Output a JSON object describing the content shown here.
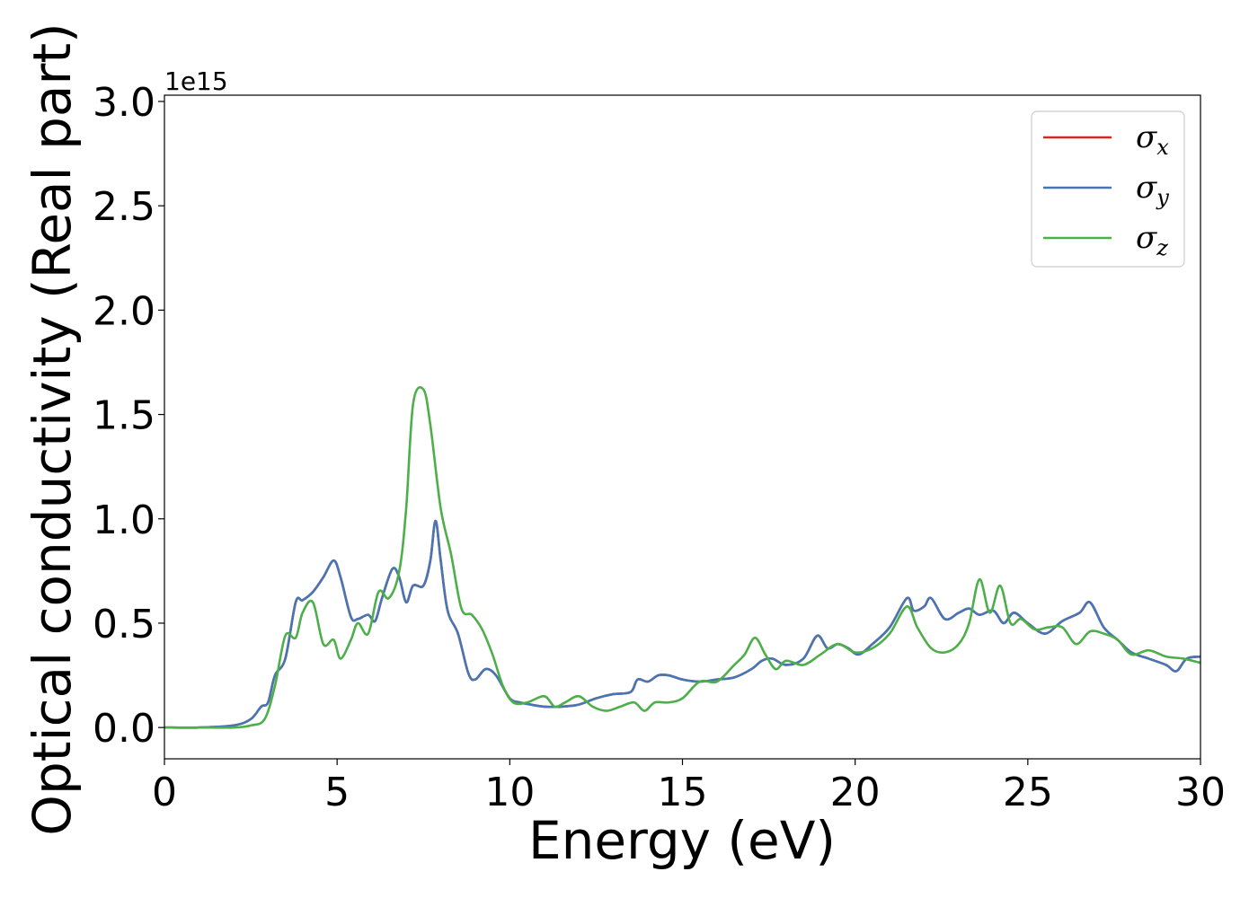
{
  "chart_data": {
    "type": "line",
    "xlabel": "Energy (eV)",
    "ylabel": "Optical conductivity (Real part)",
    "y_offset_text": "1e15",
    "xlim": [
      0,
      30
    ],
    "ylim": [
      -0.15,
      3.03
    ],
    "y_scale_factor": 1000000000000000.0,
    "x_ticks": [
      0,
      5,
      10,
      15,
      20,
      25,
      30
    ],
    "x_tick_labels": [
      "0",
      "5",
      "10",
      "15",
      "20",
      "25",
      "30"
    ],
    "y_ticks": [
      0.0,
      0.5,
      1.0,
      1.5,
      2.0,
      2.5,
      3.0
    ],
    "y_tick_labels": [
      "0.0",
      "0.5",
      "1.0",
      "1.5",
      "2.0",
      "2.5",
      "3.0"
    ],
    "grid": false,
    "legend_position": "top-right",
    "series": [
      {
        "name": "σx",
        "legend_base": "σ",
        "legend_sub": "x",
        "color": "#d62728",
        "x": [
          0,
          1,
          2,
          2.5,
          2.8,
          3.0,
          3.2,
          3.5,
          3.8,
          4.0,
          4.3,
          4.6,
          4.9,
          5.1,
          5.4,
          5.6,
          5.9,
          6.1,
          6.3,
          6.6,
          6.8,
          7.0,
          7.2,
          7.5,
          7.7,
          7.85,
          8.0,
          8.2,
          8.5,
          8.8,
          9.0,
          9.3,
          9.6,
          10.0,
          10.3,
          10.6,
          11.0,
          11.5,
          12.0,
          12.5,
          13.0,
          13.5,
          13.7,
          14.0,
          14.3,
          14.6,
          15.0,
          15.5,
          16.0,
          16.5,
          17.0,
          17.3,
          17.6,
          18.0,
          18.5,
          18.9,
          19.2,
          19.5,
          19.8,
          20.1,
          20.5,
          21.0,
          21.5,
          21.7,
          22.0,
          22.2,
          22.6,
          23.0,
          23.3,
          23.6,
          24.0,
          24.3,
          24.6,
          25.0,
          25.5,
          26.0,
          26.5,
          26.8,
          27.2,
          27.6,
          28.0,
          28.5,
          29.0,
          29.3,
          29.6,
          30.0
        ],
        "values": [
          0.0,
          0.0,
          0.01,
          0.04,
          0.1,
          0.12,
          0.25,
          0.33,
          0.6,
          0.61,
          0.65,
          0.72,
          0.8,
          0.72,
          0.53,
          0.52,
          0.54,
          0.51,
          0.62,
          0.76,
          0.72,
          0.6,
          0.68,
          0.68,
          0.8,
          0.99,
          0.8,
          0.56,
          0.45,
          0.26,
          0.23,
          0.28,
          0.25,
          0.14,
          0.12,
          0.11,
          0.1,
          0.1,
          0.11,
          0.14,
          0.16,
          0.17,
          0.23,
          0.22,
          0.25,
          0.25,
          0.23,
          0.22,
          0.23,
          0.24,
          0.28,
          0.32,
          0.33,
          0.3,
          0.33,
          0.44,
          0.38,
          0.4,
          0.38,
          0.35,
          0.4,
          0.48,
          0.62,
          0.56,
          0.58,
          0.62,
          0.52,
          0.55,
          0.57,
          0.54,
          0.56,
          0.5,
          0.55,
          0.5,
          0.45,
          0.51,
          0.55,
          0.6,
          0.48,
          0.42,
          0.36,
          0.33,
          0.3,
          0.27,
          0.33,
          0.34
        ]
      },
      {
        "name": "σy",
        "legend_base": "σ",
        "legend_sub": "y",
        "color": "#4676b4",
        "x": [
          0,
          1,
          2,
          2.5,
          2.8,
          3.0,
          3.2,
          3.5,
          3.8,
          4.0,
          4.3,
          4.6,
          4.9,
          5.1,
          5.4,
          5.6,
          5.9,
          6.1,
          6.3,
          6.6,
          6.8,
          7.0,
          7.2,
          7.5,
          7.7,
          7.85,
          8.0,
          8.2,
          8.5,
          8.8,
          9.0,
          9.3,
          9.6,
          10.0,
          10.3,
          10.6,
          11.0,
          11.5,
          12.0,
          12.5,
          13.0,
          13.5,
          13.7,
          14.0,
          14.3,
          14.6,
          15.0,
          15.5,
          16.0,
          16.5,
          17.0,
          17.3,
          17.6,
          18.0,
          18.5,
          18.9,
          19.2,
          19.5,
          19.8,
          20.1,
          20.5,
          21.0,
          21.5,
          21.7,
          22.0,
          22.2,
          22.6,
          23.0,
          23.3,
          23.6,
          24.0,
          24.3,
          24.6,
          25.0,
          25.5,
          26.0,
          26.5,
          26.8,
          27.2,
          27.6,
          28.0,
          28.5,
          29.0,
          29.3,
          29.6,
          30.0
        ],
        "values": [
          0.0,
          0.0,
          0.01,
          0.04,
          0.1,
          0.12,
          0.25,
          0.33,
          0.6,
          0.61,
          0.65,
          0.72,
          0.8,
          0.72,
          0.53,
          0.52,
          0.54,
          0.51,
          0.62,
          0.76,
          0.72,
          0.6,
          0.68,
          0.68,
          0.8,
          0.99,
          0.8,
          0.56,
          0.45,
          0.26,
          0.23,
          0.28,
          0.25,
          0.14,
          0.12,
          0.11,
          0.1,
          0.1,
          0.11,
          0.14,
          0.16,
          0.17,
          0.23,
          0.22,
          0.25,
          0.25,
          0.23,
          0.22,
          0.23,
          0.24,
          0.28,
          0.32,
          0.33,
          0.3,
          0.33,
          0.44,
          0.38,
          0.4,
          0.38,
          0.35,
          0.4,
          0.48,
          0.62,
          0.56,
          0.58,
          0.62,
          0.52,
          0.55,
          0.57,
          0.54,
          0.56,
          0.5,
          0.55,
          0.5,
          0.45,
          0.51,
          0.55,
          0.6,
          0.48,
          0.42,
          0.36,
          0.33,
          0.3,
          0.27,
          0.33,
          0.34
        ]
      },
      {
        "name": "σz",
        "legend_base": "σ",
        "legend_sub": "z",
        "color": "#4daf4a",
        "x": [
          0,
          1,
          2,
          2.5,
          2.9,
          3.2,
          3.5,
          3.8,
          4.0,
          4.3,
          4.6,
          4.9,
          5.1,
          5.4,
          5.6,
          5.9,
          6.2,
          6.5,
          6.8,
          7.0,
          7.2,
          7.5,
          7.7,
          8.0,
          8.3,
          8.6,
          8.9,
          9.2,
          9.5,
          9.8,
          10.1,
          10.5,
          11.0,
          11.3,
          11.6,
          12.0,
          12.4,
          12.8,
          13.2,
          13.6,
          13.9,
          14.2,
          14.6,
          15.0,
          15.5,
          16.0,
          16.5,
          16.8,
          17.1,
          17.4,
          17.7,
          18.0,
          18.5,
          19.0,
          19.5,
          20.0,
          20.5,
          21.0,
          21.5,
          21.8,
          22.2,
          22.6,
          23.0,
          23.3,
          23.6,
          23.9,
          24.2,
          24.5,
          24.8,
          25.2,
          25.6,
          26.0,
          26.4,
          26.8,
          27.2,
          27.6,
          28.0,
          28.5,
          29.0,
          29.5,
          30.0
        ],
        "values": [
          0.0,
          0.0,
          0.0,
          0.01,
          0.04,
          0.2,
          0.44,
          0.43,
          0.55,
          0.6,
          0.4,
          0.42,
          0.33,
          0.42,
          0.5,
          0.45,
          0.65,
          0.62,
          0.75,
          1.05,
          1.55,
          1.62,
          1.45,
          1.05,
          0.83,
          0.57,
          0.54,
          0.47,
          0.35,
          0.2,
          0.12,
          0.12,
          0.15,
          0.1,
          0.12,
          0.15,
          0.1,
          0.08,
          0.1,
          0.12,
          0.08,
          0.12,
          0.12,
          0.14,
          0.22,
          0.22,
          0.3,
          0.35,
          0.43,
          0.35,
          0.28,
          0.32,
          0.3,
          0.35,
          0.4,
          0.36,
          0.38,
          0.45,
          0.58,
          0.48,
          0.38,
          0.36,
          0.4,
          0.5,
          0.71,
          0.55,
          0.68,
          0.5,
          0.52,
          0.47,
          0.48,
          0.48,
          0.4,
          0.46,
          0.45,
          0.42,
          0.35,
          0.37,
          0.34,
          0.33,
          0.31
        ]
      }
    ]
  }
}
